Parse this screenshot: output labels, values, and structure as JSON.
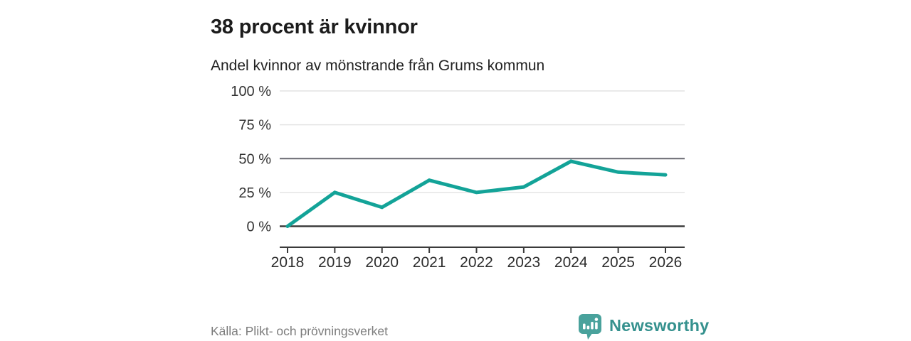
{
  "header": {
    "title": "38 procent är kvinnor",
    "subtitle": "Andel kvinnor av mönstrande från Grums kommun"
  },
  "chart_data": {
    "type": "line",
    "title": "Andel kvinnor av mönstrande från Grums kommun",
    "categories": [
      "2018",
      "2019",
      "2020",
      "2021",
      "2022",
      "2023",
      "2024",
      "2025",
      "2026"
    ],
    "series": [
      {
        "name": "Andel kvinnor",
        "values": [
          0,
          25,
          14,
          34,
          25,
          29,
          48,
          40,
          38
        ]
      }
    ],
    "unit": "%",
    "ylim": [
      0,
      100
    ],
    "yticks": [
      0,
      25,
      50,
      75,
      100
    ],
    "ytick_labels": [
      "0 %",
      "25 %",
      "50 %",
      "75 %",
      "100 %"
    ],
    "grid": "horizontal",
    "emphasized_gridlines": [
      0,
      50
    ],
    "line_color": "#13a398",
    "legend": "none"
  },
  "footer": {
    "source": "Källa: Plikt- och prövningsverket",
    "brand": "Newsworthy"
  },
  "colors": {
    "accent_teal": "#13a398",
    "brand_teal": "#35918e",
    "logo_icon_teal": "#49a29c",
    "title_text": "#1c1c1c",
    "muted_text": "#7d7d7d"
  }
}
